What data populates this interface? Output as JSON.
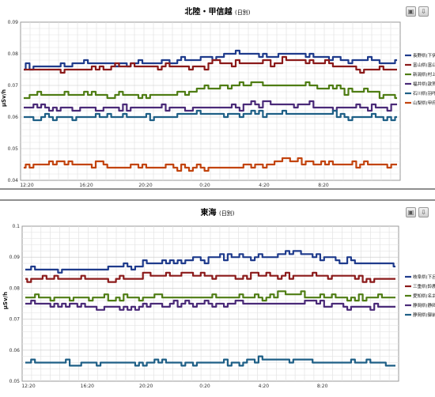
{
  "toolbar_icons": [
    "image-icon",
    "save-icon"
  ],
  "chart_data": [
    {
      "type": "line",
      "title": "北陸・甲信越",
      "subtitle": "(日別)",
      "ylabel": "µSv/h",
      "ylim": [
        0.04,
        0.09
      ],
      "yticks": [
        "0.04",
        "0.05",
        "0.06",
        "0.07",
        "0.08",
        "0.09"
      ],
      "xticks": [
        "12:20",
        "16:20",
        "20:20",
        "0:20",
        "4:20",
        "8:20"
      ],
      "grid": true,
      "legend_position": "right",
      "series": [
        {
          "name": "長野県(下伊那)",
          "color": "#1f3b8c",
          "values": [
            0.076,
            0.076,
            0.077,
            0.077,
            0.077,
            0.078,
            0.08,
            0.08,
            0.08,
            0.079,
            0.078,
            0.077
          ]
        },
        {
          "name": "富山県(富山市)",
          "color": "#8b1a1a",
          "values": [
            0.075,
            0.075,
            0.075,
            0.076,
            0.076,
            0.076,
            0.077,
            0.077,
            0.078,
            0.077,
            0.075,
            0.075
          ]
        },
        {
          "name": "新潟県(村上市)",
          "color": "#4f7d14",
          "values": [
            0.067,
            0.067,
            0.067,
            0.067,
            0.067,
            0.068,
            0.07,
            0.07,
            0.07,
            0.069,
            0.068,
            0.067
          ]
        },
        {
          "name": "福井県(敦賀)",
          "color": "#4a2a78",
          "values": [
            0.063,
            0.063,
            0.063,
            0.063,
            0.063,
            0.063,
            0.063,
            0.064,
            0.064,
            0.063,
            0.063,
            0.063
          ]
        },
        {
          "name": "石川県(羽咋市)",
          "color": "#1e5f86",
          "values": [
            0.06,
            0.06,
            0.06,
            0.06,
            0.06,
            0.061,
            0.061,
            0.061,
            0.061,
            0.061,
            0.06,
            0.06
          ]
        },
        {
          "name": "山梨県(甲府市)",
          "color": "#c2440e",
          "values": [
            0.045,
            0.045,
            0.045,
            0.044,
            0.044,
            0.044,
            0.044,
            0.045,
            0.046,
            0.045,
            0.045,
            0.045
          ]
        }
      ]
    },
    {
      "type": "line",
      "title": "東海",
      "subtitle": "(日別)",
      "ylabel": "µSv/h",
      "ylim": [
        0.05,
        0.1
      ],
      "yticks": [
        "0.05",
        "0.06",
        "0.07",
        "0.08",
        "0.09",
        "0.1"
      ],
      "xticks": [
        "12:20",
        "16:20",
        "20:20",
        "0:20",
        "4:20",
        "8:20"
      ],
      "grid": true,
      "legend_position": "right",
      "series": [
        {
          "name": "岐阜県(下呂市)",
          "color": "#1f3b8c",
          "values": [
            0.086,
            0.086,
            0.086,
            0.087,
            0.088,
            0.089,
            0.09,
            0.09,
            0.091,
            0.09,
            0.088,
            0.088
          ]
        },
        {
          "name": "三重県(鈴鹿市)",
          "color": "#8b1a1a",
          "values": [
            0.083,
            0.083,
            0.083,
            0.083,
            0.084,
            0.084,
            0.084,
            0.084,
            0.084,
            0.084,
            0.083,
            0.083
          ]
        },
        {
          "name": "愛知県(名古屋市)",
          "color": "#4f7d14",
          "values": [
            0.077,
            0.077,
            0.077,
            0.077,
            0.077,
            0.077,
            0.077,
            0.077,
            0.078,
            0.077,
            0.077,
            0.077
          ]
        },
        {
          "name": "静岡県(静岡市)",
          "color": "#4a2a78",
          "values": [
            0.075,
            0.075,
            0.074,
            0.074,
            0.075,
            0.075,
            0.075,
            0.075,
            0.075,
            0.075,
            0.074,
            0.074
          ]
        },
        {
          "name": "静岡県(御前崎)",
          "color": "#1e5f86",
          "values": [
            0.056,
            0.056,
            0.056,
            0.056,
            0.056,
            0.056,
            0.056,
            0.057,
            0.057,
            0.056,
            0.056,
            0.056
          ]
        }
      ]
    }
  ]
}
